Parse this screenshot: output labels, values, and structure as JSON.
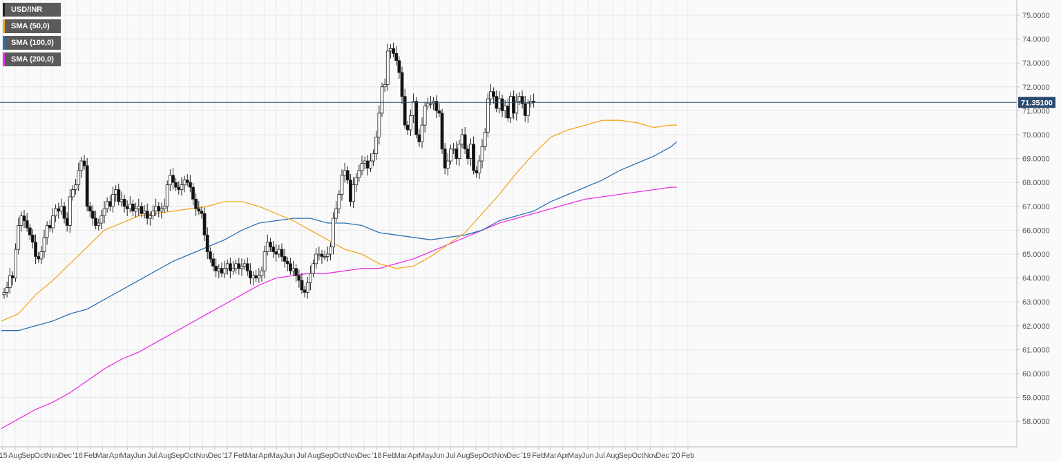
{
  "chart_data": {
    "type": "candlestick",
    "instrument": "USD/INR",
    "timeframe": "weekly",
    "legend": [
      {
        "label": "USD/INR",
        "color": "#222222"
      },
      {
        "label": "SMA (50,0)",
        "color": "#f5a623"
      },
      {
        "label": "SMA (100,0)",
        "color": "#2d6fb4"
      },
      {
        "label": "SMA (200,0)",
        "color": "#e632e6"
      }
    ],
    "legend_placement": "top-left",
    "grid": true,
    "ylim": [
      57.4,
      75.5
    ],
    "y_ticks": [
      "58.0000",
      "59.0000",
      "60.0000",
      "61.0000",
      "62.0000",
      "63.0000",
      "64.0000",
      "65.0000",
      "66.0000",
      "67.0000",
      "68.0000",
      "69.0000",
      "70.0000",
      "71.0000",
      "72.0000",
      "73.0000",
      "74.0000",
      "75.0000"
    ],
    "x_ticks": [
      "'15",
      "Aug",
      "Sep",
      "Oct",
      "Nov",
      "Dec",
      "'16",
      "Feb",
      "Mar",
      "Apr",
      "May",
      "Jun",
      "Jul",
      "Aug",
      "Sep",
      "Oct",
      "Nov",
      "Dec",
      "'17",
      "Feb",
      "Mar",
      "Apr",
      "May",
      "Jun",
      "Jul",
      "Aug",
      "Sep",
      "Oct",
      "Nov",
      "Dec",
      "'18",
      "Feb",
      "Mar",
      "Apr",
      "May",
      "Jun",
      "Jul",
      "Aug",
      "Sep",
      "Oct",
      "Nov",
      "Dec",
      "'19",
      "Feb",
      "Mar",
      "Apr",
      "May",
      "Jun",
      "Jul",
      "Aug",
      "Sep",
      "Oct",
      "Nov",
      "Dec",
      "'20",
      "Feb"
    ],
    "current_price": 71.351,
    "current_price_label": "71.35100",
    "closes": [
      63.4,
      63.6,
      64.1,
      64.0,
      65.2,
      66.2,
      66.6,
      66.4,
      66.1,
      65.8,
      65.5,
      64.9,
      64.8,
      65.1,
      65.7,
      66.2,
      66.1,
      66.6,
      66.9,
      66.8,
      67.0,
      66.5,
      66.2,
      67.4,
      67.7,
      67.9,
      68.5,
      68.9,
      68.7,
      67.0,
      66.8,
      66.5,
      66.2,
      66.3,
      66.6,
      66.9,
      67.2,
      67.0,
      67.5,
      67.7,
      67.2,
      67.3,
      67.0,
      66.9,
      67.1,
      66.8,
      66.9,
      67.0,
      66.7,
      66.8,
      66.5,
      66.6,
      66.8,
      67.0,
      66.8,
      66.9,
      67.0,
      67.9,
      68.3,
      68.0,
      67.8,
      67.7,
      67.9,
      68.1,
      68.0,
      67.8,
      67.3,
      66.9,
      66.8,
      66.7,
      65.8,
      65.1,
      64.8,
      64.5,
      64.3,
      64.4,
      64.2,
      64.4,
      64.6,
      64.3,
      64.4,
      64.6,
      64.4,
      64.5,
      64.6,
      64.3,
      64.0,
      64.1,
      64.0,
      64.1,
      64.3,
      65.1,
      65.5,
      65.3,
      65.1,
      65.0,
      65.2,
      64.9,
      64.7,
      64.6,
      64.3,
      64.4,
      64.1,
      63.9,
      63.5,
      63.4,
      63.8,
      64.2,
      64.6,
      65.0,
      65.0,
      64.9,
      64.9,
      65.0,
      65.3,
      66.5,
      66.9,
      67.5,
      68.3,
      68.5,
      68.1,
      67.2,
      67.9,
      68.2,
      68.5,
      68.8,
      68.9,
      68.6,
      68.9,
      69.2,
      69.9,
      70.9,
      72.0,
      72.1,
      73.5,
      73.6,
      73.4,
      73.1,
      72.6,
      71.6,
      70.4,
      70.2,
      70.8,
      71.4,
      70.0,
      69.7,
      70.4,
      71.2,
      71.3,
      71.3,
      71.4,
      71.0,
      70.9,
      69.4,
      68.6,
      68.9,
      69.4,
      69.4,
      69.0,
      69.6,
      70.0,
      69.4,
      69.0,
      69.6,
      68.5,
      68.4,
      68.9,
      69.5,
      70.1,
      71.5,
      71.8,
      71.6,
      71.1,
      71.5,
      71.0,
      71.2,
      70.7,
      71.6,
      70.9,
      71.4,
      71.6,
      71.3,
      70.8,
      71.3,
      71.4,
      71.35
    ],
    "sma_50": [
      {
        "date": "2015-06-28",
        "value": 62.2
      },
      {
        "date": "2015-08-09",
        "value": 62.5
      },
      {
        "date": "2015-09-20",
        "value": 63.3
      },
      {
        "date": "2015-11-01",
        "value": 63.9
      },
      {
        "date": "2015-12-13",
        "value": 64.6
      },
      {
        "date": "2016-01-24",
        "value": 65.3
      },
      {
        "date": "2016-03-06",
        "value": 66.0
      },
      {
        "date": "2016-04-17",
        "value": 66.3
      },
      {
        "date": "2016-05-29",
        "value": 66.6
      },
      {
        "date": "2016-07-10",
        "value": 66.7
      },
      {
        "date": "2016-08-21",
        "value": 66.8
      },
      {
        "date": "2016-10-02",
        "value": 66.9
      },
      {
        "date": "2016-11-13",
        "value": 67.0
      },
      {
        "date": "2016-12-25",
        "value": 67.2
      },
      {
        "date": "2017-02-05",
        "value": 67.2
      },
      {
        "date": "2017-03-19",
        "value": 67.0
      },
      {
        "date": "2017-04-30",
        "value": 66.7
      },
      {
        "date": "2017-06-11",
        "value": 66.4
      },
      {
        "date": "2017-07-23",
        "value": 66.0
      },
      {
        "date": "2017-09-03",
        "value": 65.6
      },
      {
        "date": "2017-10-15",
        "value": 65.2
      },
      {
        "date": "2017-11-26",
        "value": 65.0
      },
      {
        "date": "2018-01-07",
        "value": 64.6
      },
      {
        "date": "2018-02-18",
        "value": 64.4
      },
      {
        "date": "2018-04-01",
        "value": 64.5
      },
      {
        "date": "2018-05-13",
        "value": 64.9
      },
      {
        "date": "2018-06-24",
        "value": 65.4
      },
      {
        "date": "2018-08-05",
        "value": 65.9
      },
      {
        "date": "2018-09-16",
        "value": 66.7
      },
      {
        "date": "2018-10-28",
        "value": 67.5
      },
      {
        "date": "2018-12-09",
        "value": 68.4
      },
      {
        "date": "2019-01-20",
        "value": 69.2
      },
      {
        "date": "2019-03-03",
        "value": 69.9
      },
      {
        "date": "2019-04-14",
        "value": 70.2
      },
      {
        "date": "2019-05-26",
        "value": 70.4
      },
      {
        "date": "2019-07-07",
        "value": 70.6
      },
      {
        "date": "2019-08-18",
        "value": 70.6
      },
      {
        "date": "2019-09-29",
        "value": 70.5
      },
      {
        "date": "2019-11-10",
        "value": 70.3
      },
      {
        "date": "2019-12-22",
        "value": 70.4
      },
      {
        "date": "2020-01-05",
        "value": 70.4
      }
    ],
    "sma_100": [
      {
        "date": "2015-06-28",
        "value": 61.8
      },
      {
        "date": "2015-08-09",
        "value": 61.8
      },
      {
        "date": "2015-09-20",
        "value": 62.0
      },
      {
        "date": "2015-11-01",
        "value": 62.2
      },
      {
        "date": "2015-12-13",
        "value": 62.5
      },
      {
        "date": "2016-01-24",
        "value": 62.7
      },
      {
        "date": "2016-03-06",
        "value": 63.1
      },
      {
        "date": "2016-04-17",
        "value": 63.5
      },
      {
        "date": "2016-05-29",
        "value": 63.9
      },
      {
        "date": "2016-07-10",
        "value": 64.3
      },
      {
        "date": "2016-08-21",
        "value": 64.7
      },
      {
        "date": "2016-10-02",
        "value": 65.0
      },
      {
        "date": "2016-11-13",
        "value": 65.3
      },
      {
        "date": "2016-12-25",
        "value": 65.6
      },
      {
        "date": "2017-02-05",
        "value": 66.0
      },
      {
        "date": "2017-03-19",
        "value": 66.3
      },
      {
        "date": "2017-04-30",
        "value": 66.4
      },
      {
        "date": "2017-06-11",
        "value": 66.5
      },
      {
        "date": "2017-07-23",
        "value": 66.5
      },
      {
        "date": "2017-09-03",
        "value": 66.3
      },
      {
        "date": "2017-10-15",
        "value": 66.3
      },
      {
        "date": "2017-11-26",
        "value": 66.2
      },
      {
        "date": "2018-01-07",
        "value": 65.9
      },
      {
        "date": "2018-02-18",
        "value": 65.8
      },
      {
        "date": "2018-04-01",
        "value": 65.7
      },
      {
        "date": "2018-05-13",
        "value": 65.6
      },
      {
        "date": "2018-06-24",
        "value": 65.7
      },
      {
        "date": "2018-08-05",
        "value": 65.8
      },
      {
        "date": "2018-09-16",
        "value": 66.0
      },
      {
        "date": "2018-10-28",
        "value": 66.4
      },
      {
        "date": "2018-12-09",
        "value": 66.6
      },
      {
        "date": "2019-01-20",
        "value": 66.8
      },
      {
        "date": "2019-03-03",
        "value": 67.2
      },
      {
        "date": "2019-04-14",
        "value": 67.5
      },
      {
        "date": "2019-05-26",
        "value": 67.8
      },
      {
        "date": "2019-07-07",
        "value": 68.1
      },
      {
        "date": "2019-08-18",
        "value": 68.5
      },
      {
        "date": "2019-09-29",
        "value": 68.8
      },
      {
        "date": "2019-11-10",
        "value": 69.1
      },
      {
        "date": "2019-12-22",
        "value": 69.5
      },
      {
        "date": "2020-01-05",
        "value": 69.7
      }
    ],
    "sma_200": [
      {
        "date": "2015-06-28",
        "value": 57.7
      },
      {
        "date": "2015-08-09",
        "value": 58.1
      },
      {
        "date": "2015-09-20",
        "value": 58.5
      },
      {
        "date": "2015-11-01",
        "value": 58.8
      },
      {
        "date": "2015-12-13",
        "value": 59.2
      },
      {
        "date": "2016-01-24",
        "value": 59.7
      },
      {
        "date": "2016-03-06",
        "value": 60.2
      },
      {
        "date": "2016-04-17",
        "value": 60.6
      },
      {
        "date": "2016-05-29",
        "value": 60.9
      },
      {
        "date": "2016-07-10",
        "value": 61.3
      },
      {
        "date": "2016-08-21",
        "value": 61.7
      },
      {
        "date": "2016-10-02",
        "value": 62.1
      },
      {
        "date": "2016-11-13",
        "value": 62.5
      },
      {
        "date": "2016-12-25",
        "value": 62.9
      },
      {
        "date": "2017-02-05",
        "value": 63.3
      },
      {
        "date": "2017-03-19",
        "value": 63.7
      },
      {
        "date": "2017-04-30",
        "value": 64.0
      },
      {
        "date": "2017-06-11",
        "value": 64.1
      },
      {
        "date": "2017-07-23",
        "value": 64.2
      },
      {
        "date": "2017-09-03",
        "value": 64.2
      },
      {
        "date": "2017-10-15",
        "value": 64.3
      },
      {
        "date": "2017-11-26",
        "value": 64.4
      },
      {
        "date": "2018-01-07",
        "value": 64.4
      },
      {
        "date": "2018-02-18",
        "value": 64.6
      },
      {
        "date": "2018-04-01",
        "value": 64.8
      },
      {
        "date": "2018-05-13",
        "value": 65.1
      },
      {
        "date": "2018-06-24",
        "value": 65.4
      },
      {
        "date": "2018-08-05",
        "value": 65.7
      },
      {
        "date": "2018-09-16",
        "value": 66.0
      },
      {
        "date": "2018-10-28",
        "value": 66.3
      },
      {
        "date": "2018-12-09",
        "value": 66.5
      },
      {
        "date": "2019-01-20",
        "value": 66.7
      },
      {
        "date": "2019-03-03",
        "value": 66.9
      },
      {
        "date": "2019-04-14",
        "value": 67.1
      },
      {
        "date": "2019-05-26",
        "value": 67.3
      },
      {
        "date": "2019-07-07",
        "value": 67.4
      },
      {
        "date": "2019-08-18",
        "value": 67.5
      },
      {
        "date": "2019-09-29",
        "value": 67.6
      },
      {
        "date": "2019-11-10",
        "value": 67.7
      },
      {
        "date": "2019-12-22",
        "value": 67.8
      },
      {
        "date": "2020-01-05",
        "value": 67.8
      }
    ]
  }
}
